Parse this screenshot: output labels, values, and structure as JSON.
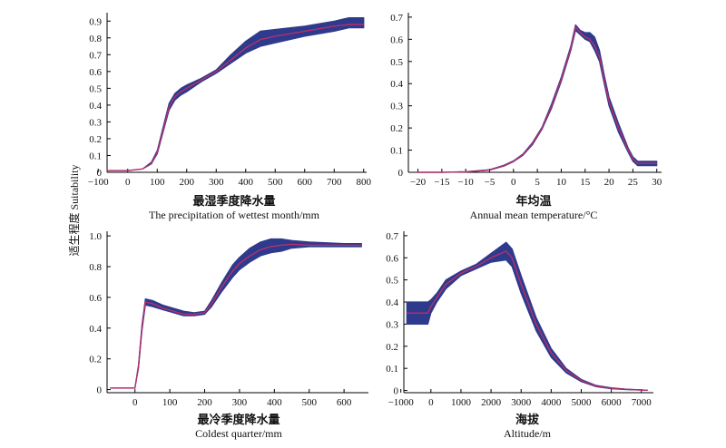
{
  "figure": {
    "ylabel": "适生程度 Suitability",
    "band_color": "#2e3a8c",
    "line_color": "#b5306d"
  },
  "chart_data": [
    {
      "type": "area",
      "xlabel_cn": "最湿季度降水量",
      "xlabel_en": "The precipitation of wettest month/mm",
      "xlim": [
        -70,
        810
      ],
      "ylim": [
        0,
        0.95
      ],
      "xticks": [
        -100,
        0,
        100,
        200,
        300,
        400,
        500,
        600,
        700,
        800
      ],
      "yticks": [
        0,
        0.1,
        0.2,
        0.3,
        0.4,
        0.5,
        0.6,
        0.7,
        0.8,
        0.9
      ],
      "series": [
        {
          "x": [
            -70,
            0,
            50,
            80,
            100,
            120,
            140,
            160,
            180,
            200,
            250,
            300,
            350,
            400,
            450,
            500,
            600,
            700,
            750,
            800
          ],
          "y": [
            0.01,
            0.01,
            0.02,
            0.05,
            0.12,
            0.25,
            0.39,
            0.45,
            0.48,
            0.5,
            0.55,
            0.6,
            0.67,
            0.74,
            0.79,
            0.81,
            0.84,
            0.87,
            0.88,
            0.88
          ],
          "lower": [
            0.01,
            0.01,
            0.02,
            0.05,
            0.11,
            0.24,
            0.37,
            0.43,
            0.46,
            0.48,
            0.54,
            0.59,
            0.65,
            0.71,
            0.75,
            0.77,
            0.81,
            0.84,
            0.86,
            0.86
          ],
          "upper": [
            0.01,
            0.01,
            0.02,
            0.06,
            0.13,
            0.27,
            0.41,
            0.47,
            0.5,
            0.52,
            0.56,
            0.61,
            0.7,
            0.78,
            0.84,
            0.85,
            0.87,
            0.9,
            0.92,
            0.92
          ]
        }
      ]
    },
    {
      "type": "area",
      "xlabel_cn": "年均温",
      "xlabel_en": "Annual mean temperature/°C",
      "xlim": [
        -22,
        31
      ],
      "ylim": [
        0,
        0.72
      ],
      "xticks": [
        -20,
        -15,
        -10,
        -5,
        0,
        5,
        10,
        15,
        20,
        25,
        30
      ],
      "yticks": [
        0,
        0.1,
        0.2,
        0.3,
        0.4,
        0.5,
        0.6,
        0.7
      ],
      "series": [
        {
          "x": [
            -20,
            -15,
            -10,
            -5,
            -2,
            0,
            2,
            4,
            6,
            8,
            10,
            12,
            13,
            14,
            15,
            16,
            17,
            18,
            19,
            20,
            22,
            24,
            25,
            26,
            30
          ],
          "y": [
            0,
            0,
            0.002,
            0.01,
            0.03,
            0.05,
            0.08,
            0.13,
            0.2,
            0.3,
            0.42,
            0.56,
            0.655,
            0.63,
            0.61,
            0.6,
            0.57,
            0.52,
            0.42,
            0.32,
            0.2,
            0.1,
            0.06,
            0.04,
            0.04
          ],
          "lower": [
            0,
            0,
            0.002,
            0.01,
            0.028,
            0.048,
            0.077,
            0.125,
            0.195,
            0.29,
            0.41,
            0.55,
            0.64,
            0.62,
            0.6,
            0.59,
            0.55,
            0.5,
            0.4,
            0.3,
            0.18,
            0.09,
            0.05,
            0.03,
            0.03
          ],
          "upper": [
            0,
            0,
            0.003,
            0.012,
            0.032,
            0.052,
            0.083,
            0.135,
            0.205,
            0.31,
            0.43,
            0.57,
            0.665,
            0.64,
            0.63,
            0.63,
            0.61,
            0.55,
            0.44,
            0.34,
            0.22,
            0.11,
            0.07,
            0.05,
            0.05
          ]
        }
      ]
    },
    {
      "type": "area",
      "xlabel_cn": "最冷季度降水量",
      "xlabel_en": "Coldest quarter/mm",
      "xlim": [
        -80,
        670
      ],
      "ylim": [
        -0.02,
        1.03
      ],
      "xticks": [
        0,
        100,
        200,
        300,
        400,
        500,
        600
      ],
      "yticks": [
        0,
        0.2,
        0.4,
        0.6,
        0.8,
        1.0
      ],
      "ytick_labels": [
        "0",
        "0.2",
        "0.4",
        "0.6",
        "0.8",
        "1.0"
      ],
      "series": [
        {
          "x": [
            -70,
            0,
            10,
            20,
            30,
            50,
            80,
            110,
            140,
            170,
            200,
            220,
            250,
            280,
            300,
            330,
            360,
            390,
            420,
            450,
            500,
            550,
            600,
            650
          ],
          "y": [
            0.01,
            0.01,
            0.15,
            0.4,
            0.57,
            0.56,
            0.53,
            0.51,
            0.49,
            0.49,
            0.5,
            0.56,
            0.67,
            0.77,
            0.82,
            0.87,
            0.91,
            0.93,
            0.94,
            0.945,
            0.94,
            0.94,
            0.94,
            0.94
          ],
          "lower": [
            0.01,
            0.01,
            0.14,
            0.38,
            0.55,
            0.54,
            0.52,
            0.5,
            0.48,
            0.48,
            0.49,
            0.54,
            0.64,
            0.73,
            0.78,
            0.83,
            0.87,
            0.89,
            0.9,
            0.92,
            0.93,
            0.93,
            0.93,
            0.93
          ],
          "upper": [
            0.01,
            0.01,
            0.16,
            0.42,
            0.59,
            0.58,
            0.55,
            0.53,
            0.51,
            0.5,
            0.51,
            0.58,
            0.7,
            0.81,
            0.86,
            0.92,
            0.96,
            0.98,
            0.98,
            0.97,
            0.96,
            0.955,
            0.95,
            0.95
          ]
        }
      ]
    },
    {
      "type": "area",
      "xlabel_cn": "海拔",
      "xlabel_en": "Altitude/m",
      "xlim": [
        -900,
        7400
      ],
      "ylim": [
        -0.01,
        0.72
      ],
      "xticks": [
        -1000,
        0,
        1000,
        2000,
        3000,
        4000,
        5000,
        6000,
        7000
      ],
      "yticks": [
        0,
        0.1,
        0.2,
        0.3,
        0.4,
        0.5,
        0.6,
        0.7
      ],
      "series": [
        {
          "x": [
            -800,
            -100,
            0,
            200,
            500,
            1000,
            1500,
            2000,
            2500,
            2700,
            3000,
            3500,
            4000,
            4500,
            5000,
            5500,
            6000,
            6500,
            7000,
            7200
          ],
          "y": [
            0.35,
            0.35,
            0.38,
            0.42,
            0.48,
            0.53,
            0.56,
            0.6,
            0.63,
            0.6,
            0.48,
            0.3,
            0.17,
            0.09,
            0.045,
            0.02,
            0.01,
            0.005,
            0.002,
            0.001
          ],
          "lower": [
            0.3,
            0.3,
            0.35,
            0.4,
            0.46,
            0.52,
            0.55,
            0.58,
            0.59,
            0.56,
            0.44,
            0.27,
            0.15,
            0.08,
            0.04,
            0.017,
            0.008,
            0.004,
            0.002,
            0.001
          ],
          "upper": [
            0.4,
            0.4,
            0.41,
            0.44,
            0.5,
            0.54,
            0.57,
            0.62,
            0.67,
            0.64,
            0.52,
            0.33,
            0.19,
            0.1,
            0.05,
            0.023,
            0.012,
            0.006,
            0.003,
            0.001
          ]
        }
      ]
    }
  ]
}
